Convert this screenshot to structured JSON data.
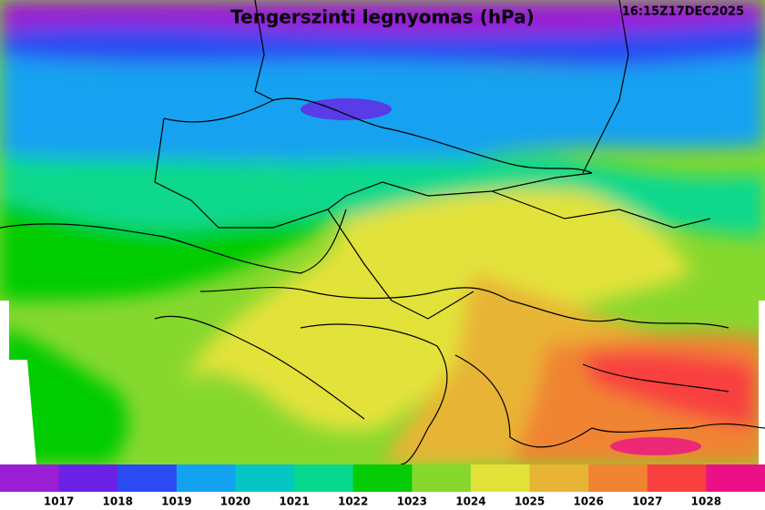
{
  "title": "Tengerszinti legnyomas (hPa)",
  "timestamp": "16:15Z17DEC2025",
  "legend": {
    "colors": [
      "#9a1fd4",
      "#6a22e6",
      "#2a4cf2",
      "#12a2f0",
      "#06c6c4",
      "#08d88c",
      "#06cc06",
      "#86d82e",
      "#e2e23a",
      "#e8b434",
      "#f08432",
      "#f84040",
      "#ec1088"
    ],
    "labels": [
      1017,
      1018,
      1019,
      1020,
      1021,
      1022,
      1023,
      1024,
      1025,
      1026,
      1027,
      1028
    ]
  }
}
